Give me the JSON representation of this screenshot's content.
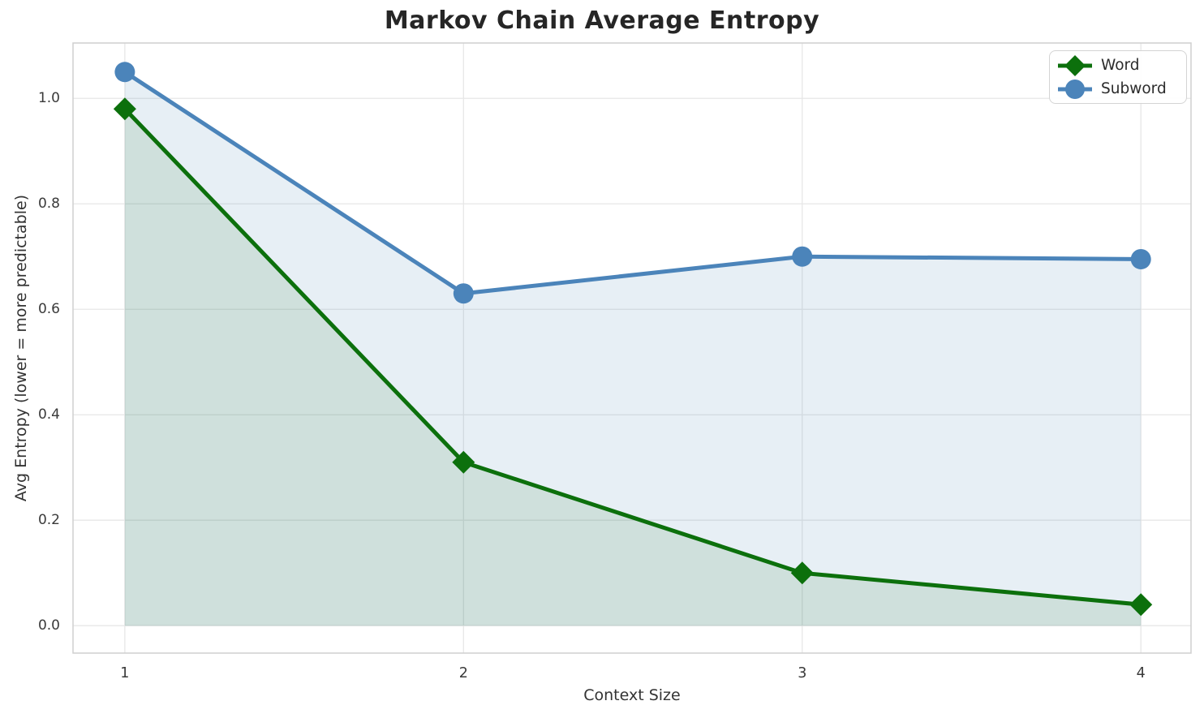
{
  "title": "Markov Chain Average Entropy",
  "axes": {
    "xlabel": "Context Size",
    "ylabel": "Avg Entropy (lower = more predictable)",
    "x_tick_labels": [
      "1",
      "2",
      "3",
      "4"
    ],
    "y_tick_labels": [
      "0.0",
      "0.2",
      "0.4",
      "0.6",
      "0.8",
      "1.0"
    ]
  },
  "legend": {
    "position": "upper right",
    "items": [
      {
        "label": "Word",
        "marker": "diamond"
      },
      {
        "label": "Subword",
        "marker": "circle"
      }
    ]
  },
  "colors": {
    "word_line": "#0c700c",
    "word_fill": "#006400",
    "subword_line": "#4b84ba",
    "subword_fill": "#4682b4",
    "grid": "#e7e7e7",
    "plot_border": "#cfcfcf",
    "title_text": "#262626",
    "tick_text": "#3a3a3a"
  },
  "chart_data": {
    "type": "line",
    "title": "Markov Chain Average Entropy",
    "xlabel": "Context Size",
    "ylabel": "Avg Entropy (lower = more predictable)",
    "x": [
      1,
      2,
      3,
      4
    ],
    "x_ticks": [
      1,
      2,
      3,
      4
    ],
    "y_ticks": [
      0.0,
      0.2,
      0.4,
      0.6,
      0.8,
      1.0
    ],
    "xlim": [
      0.847,
      4.148
    ],
    "ylim": [
      -0.052,
      1.105
    ],
    "grid": true,
    "legend_position": "upper right",
    "fill_to_zero": true,
    "series": [
      {
        "name": "Word",
        "marker": "diamond",
        "color": "#0c700c",
        "fill_color": "#006400",
        "fill_opacity": 0.1,
        "values": [
          0.98,
          0.31,
          0.1,
          0.04
        ]
      },
      {
        "name": "Subword",
        "marker": "circle",
        "color": "#4b84ba",
        "fill_color": "#4682b4",
        "fill_opacity": 0.13,
        "values": [
          1.05,
          0.63,
          0.7,
          0.695
        ]
      }
    ]
  }
}
